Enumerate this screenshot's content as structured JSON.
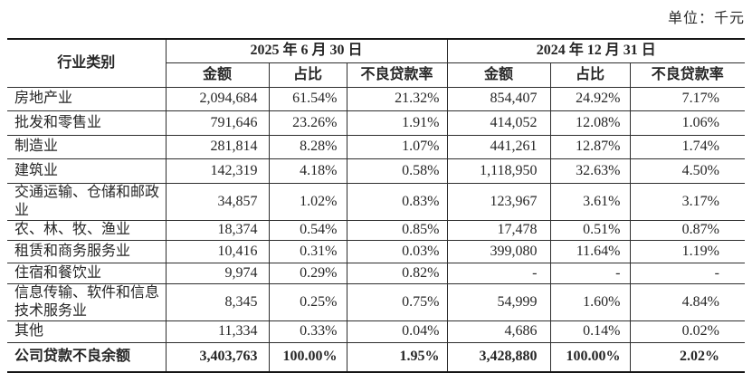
{
  "unit_label": "单位：千元",
  "table": {
    "industry_header": "行业类别",
    "period_headers": [
      "2025 年 6 月 30 日",
      "2024 年 12 月 31 日"
    ],
    "sub_headers": [
      "金额",
      "占比",
      "不良贷款率",
      "金额",
      "占比",
      "不良贷款率"
    ],
    "rows": [
      {
        "industry": "房地产业",
        "cells": [
          "2,094,684",
          "61.54%",
          "21.32%",
          "854,407",
          "24.92%",
          "7.17%"
        ],
        "bold": false
      },
      {
        "industry": "批发和零售业",
        "cells": [
          "791,646",
          "23.26%",
          "1.91%",
          "414,052",
          "12.08%",
          "1.06%"
        ],
        "bold": false
      },
      {
        "industry": "制造业",
        "cells": [
          "281,814",
          "8.28%",
          "1.07%",
          "441,261",
          "12.87%",
          "1.74%"
        ],
        "bold": false
      },
      {
        "industry": "建筑业",
        "cells": [
          "142,319",
          "4.18%",
          "0.58%",
          "1,118,950",
          "32.63%",
          "4.50%"
        ],
        "bold": false
      },
      {
        "industry": "交通运输、仓储和邮政业",
        "cells": [
          "34,857",
          "1.02%",
          "0.83%",
          "123,967",
          "3.61%",
          "3.17%"
        ],
        "bold": false
      },
      {
        "industry": "农、林、牧、渔业",
        "cells": [
          "18,374",
          "0.54%",
          "0.85%",
          "17,478",
          "0.51%",
          "0.87%"
        ],
        "bold": false
      },
      {
        "industry": "租赁和商务服务业",
        "cells": [
          "10,416",
          "0.31%",
          "0.03%",
          "399,080",
          "11.64%",
          "1.19%"
        ],
        "bold": false
      },
      {
        "industry": "住宿和餐饮业",
        "cells": [
          "9,974",
          "0.29%",
          "0.82%",
          "-",
          "-",
          "-"
        ],
        "bold": false
      },
      {
        "industry": "信息传输、软件和信息技术服务业",
        "cells": [
          "8,345",
          "0.25%",
          "0.75%",
          "54,999",
          "1.60%",
          "4.84%"
        ],
        "bold": false
      },
      {
        "industry": "其他",
        "cells": [
          "11,334",
          "0.33%",
          "0.04%",
          "4,686",
          "0.14%",
          "0.02%"
        ],
        "bold": false
      },
      {
        "industry": "公司贷款不良余额",
        "cells": [
          "3,403,763",
          "100.00%",
          "1.95%",
          "3,428,880",
          "100.00%",
          "2.02%"
        ],
        "bold": true
      }
    ]
  }
}
